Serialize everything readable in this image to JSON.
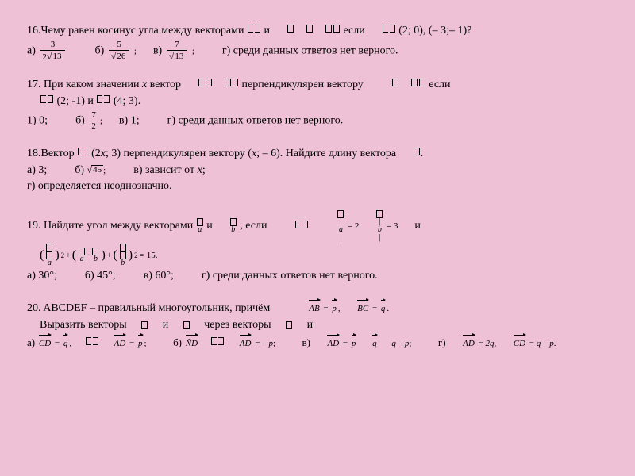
{
  "background_color": "#efc1d6",
  "text_color": "#000000",
  "font_family": "Times New Roman",
  "base_fontsize_pt": 11,
  "q16": {
    "text_a": "16.Чему равен косинус угла между векторами ",
    "text_b": "и",
    "text_c": "если",
    "coords": "(2; 0),   (– 3;– 1)?",
    "opts": {
      "a": "а)",
      "b": "б)",
      "c": "в)",
      "d": "г) среди данных ответов нет верного."
    },
    "frac_a": {
      "num": "3",
      "den_pre": "2",
      "den_rad": "13"
    },
    "frac_b": {
      "num": "5",
      "den_rad": "26"
    },
    "frac_c": {
      "num": "7",
      "den_rad": "13"
    }
  },
  "q17": {
    "line1_a": "17. При каком значении ",
    "line1_x": "x",
    "line1_b": " вектор ",
    "line1_c": "перпендикулярен вектору ",
    "line1_d": "если",
    "line2_a": "(2; -1) и ",
    "line2_b": "(4; 3).",
    "opts": {
      "a": "1) 0;",
      "b_lbl": "б)",
      "b_frac": {
        "num": "7",
        "den": "2"
      },
      "c": "в) 1;",
      "d": "г) среди данных ответов нет верного."
    }
  },
  "q18": {
    "line1_a": "18.Вектор ",
    "line1_mid": "(2",
    "line1_x": "x",
    "line1_b": "; 3) перпендикулярен вектору   (",
    "line1_x2": "x",
    "line1_c": "; – 6). Найдите длину вектора",
    "opts": {
      "a": "а) 3;",
      "b_lbl": "б)",
      "b_rad": "45",
      "c": "в) зависит от ",
      "c_x": "x",
      "c_tail": ";"
    },
    "line3": "г) определяется неоднозначно."
  },
  "q19": {
    "line1_a": "19. Найдите угол между векторами ",
    "line1_b": "и",
    "line1_c": ", если",
    "line1_eq": "и",
    "abs_a": "= 2",
    "abs_b": "= 3",
    "line2_tail": "15.",
    "opts": {
      "a": "а) 30°;",
      "b": "б) 45°;",
      "c": "в) 60°;",
      "d": "г) среди данных ответов нет верного."
    }
  },
  "q20": {
    "line1": "20. ABCDEF – правильный многугольник, причём",
    "line1_full": "20. ABCDEF – правильный многоугольник, причём",
    "line2_a": "Выразить векторы ",
    "line2_b": "и",
    "line2_c": "через векторы",
    "line2_d": "и",
    "eq_ab": "AB",
    "eq_bc": "BC",
    "eq_p": "p",
    "eq_q": "q",
    "opts": {
      "a_lbl": "а)",
      "b_lbl": "б)",
      "c_lbl": "в)",
      "d_lbl": "г)"
    },
    "vec": {
      "CD": "CD",
      "AD": "AD",
      "ND": "ÑD"
    },
    "rhs": {
      "q": "q",
      "p": "p",
      "minus_p": "– p",
      "q_minus_p": "q – p",
      "two_q": "2q"
    }
  }
}
